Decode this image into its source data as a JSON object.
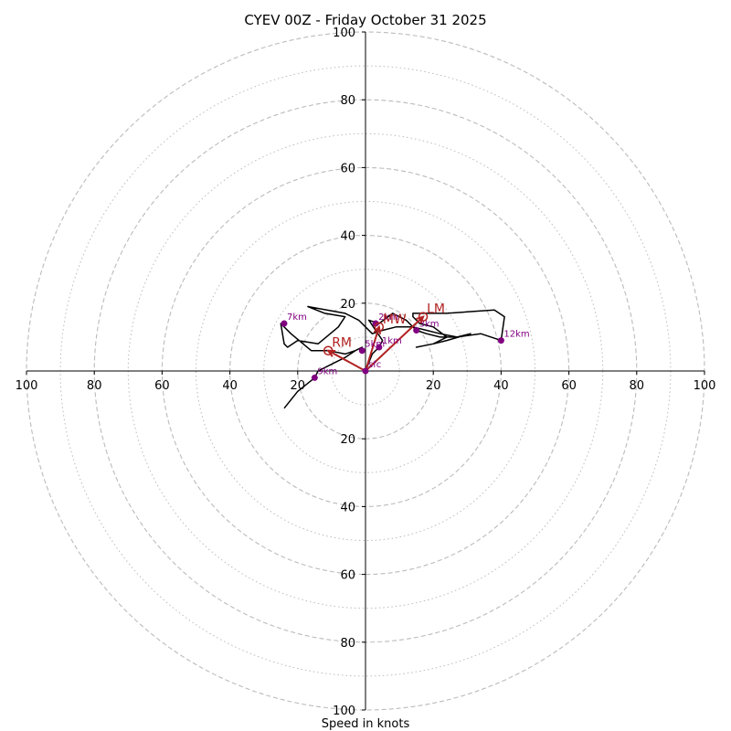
{
  "chart_data": {
    "type": "hodograph",
    "title": "CYEV 00Z - Friday October 31 2025",
    "xlabel": "Speed in knots",
    "rings_major": [
      20,
      40,
      60,
      80,
      100
    ],
    "rings_minor": [
      10,
      30,
      50,
      70,
      90
    ],
    "max_speed": 100,
    "tick_values": [
      20,
      40,
      60,
      80,
      100
    ],
    "tick_labels": [
      "20",
      "40",
      "60",
      "80",
      "100"
    ],
    "trace": [
      [
        0,
        0
      ],
      [
        2,
        5
      ],
      [
        4,
        7
      ],
      [
        5,
        9
      ],
      [
        3,
        12
      ],
      [
        1,
        15
      ],
      [
        4,
        14
      ],
      [
        8,
        17
      ],
      [
        10,
        16
      ],
      [
        12,
        15
      ],
      [
        14,
        13
      ],
      [
        15,
        12
      ],
      [
        18,
        11
      ],
      [
        22,
        10
      ],
      [
        27,
        10
      ],
      [
        31,
        11
      ],
      [
        24,
        9
      ],
      [
        20,
        8
      ],
      [
        15,
        7
      ],
      [
        20,
        8
      ],
      [
        24,
        10
      ],
      [
        20,
        13
      ],
      [
        16,
        14
      ],
      [
        14,
        16
      ],
      [
        14,
        17
      ],
      [
        24,
        17
      ],
      [
        38,
        18
      ],
      [
        41,
        16
      ],
      [
        40,
        9
      ],
      [
        34,
        11
      ],
      [
        27,
        10
      ],
      [
        22,
        11
      ],
      [
        18,
        12
      ],
      [
        14,
        13
      ],
      [
        9,
        13
      ],
      [
        5,
        12
      ],
      [
        2,
        11
      ],
      [
        0,
        13
      ],
      [
        -2,
        15
      ],
      [
        -6,
        17
      ],
      [
        -17,
        19
      ],
      [
        -12,
        17
      ],
      [
        -6,
        16
      ],
      [
        -8,
        13
      ],
      [
        -14,
        8
      ],
      [
        -20,
        9
      ],
      [
        -23,
        7
      ],
      [
        -24,
        8
      ],
      [
        -25,
        14
      ],
      [
        -22,
        11
      ],
      [
        -16,
        6
      ],
      [
        -11,
        6
      ],
      [
        -6,
        5
      ],
      [
        -3,
        6
      ],
      [
        -1,
        7
      ],
      [
        -3,
        6
      ],
      [
        -6,
        4
      ],
      [
        -10,
        2
      ],
      [
        -14,
        0
      ],
      [
        -15,
        -2
      ],
      [
        -20,
        -6
      ],
      [
        -24,
        -11
      ]
    ],
    "height_markers": [
      {
        "label": "sfc",
        "u": 0,
        "v": 0
      },
      {
        "label": "1km",
        "u": 4,
        "v": 7
      },
      {
        "label": "2km",
        "u": 3,
        "v": 14
      },
      {
        "label": "3km",
        "u": 15,
        "v": 12
      },
      {
        "label": "5km",
        "u": -1,
        "v": 6
      },
      {
        "label": "7km",
        "u": -24,
        "v": 14
      },
      {
        "label": "9km",
        "u": -15,
        "v": -2
      },
      {
        "label": "12km",
        "u": 40,
        "v": 9
      }
    ],
    "storm_motions": [
      {
        "label": "RM",
        "u": -11,
        "v": 6
      },
      {
        "label": "LM",
        "u": 17,
        "v": 16
      },
      {
        "label": "MW",
        "u": 4,
        "v": 13
      }
    ],
    "colors": {
      "trace": "#000000",
      "marker": "#800080",
      "storm": "#b22222",
      "grid": "#bbbbbb",
      "axis": "#000000"
    }
  }
}
